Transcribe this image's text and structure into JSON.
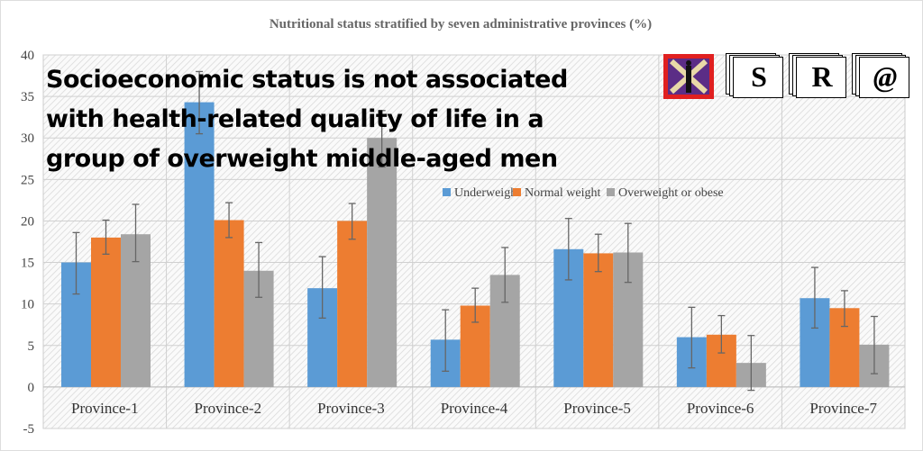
{
  "chart_data": {
    "type": "bar",
    "title": "Nutritional  status stratified  by seven administrative  provinces (%)",
    "categories": [
      "Province-1",
      "Province-2",
      "Province-3",
      "Province-4",
      "Province-5",
      "Province-6",
      "Province-7"
    ],
    "series": [
      {
        "name": "Underweight",
        "color": "#5b9bd5",
        "values": [
          15.0,
          34.3,
          11.9,
          5.7,
          16.6,
          6.0,
          10.7
        ],
        "err_low": [
          11.2,
          30.5,
          8.3,
          1.9,
          12.9,
          2.3,
          7.1
        ],
        "err_high": [
          18.6,
          38.0,
          15.7,
          9.3,
          20.3,
          9.6,
          14.4
        ]
      },
      {
        "name": "Normal weight",
        "color": "#ed7d31",
        "values": [
          18.0,
          20.1,
          20.0,
          9.8,
          16.1,
          6.3,
          9.5
        ],
        "err_low": [
          16.0,
          18.0,
          17.8,
          7.8,
          13.9,
          4.1,
          7.3
        ],
        "err_high": [
          20.1,
          22.2,
          22.1,
          11.9,
          18.4,
          8.6,
          11.6
        ]
      },
      {
        "name": "Overweight or obese",
        "color": "#a5a5a5",
        "values": [
          18.4,
          14.0,
          30.0,
          13.5,
          16.2,
          2.9,
          5.1
        ],
        "err_low": [
          15.1,
          10.8,
          26.5,
          10.2,
          12.6,
          -0.4,
          1.6
        ],
        "err_high": [
          22.0,
          17.4,
          33.3,
          16.8,
          19.7,
          6.2,
          8.5
        ]
      }
    ],
    "yticks": [
      "40",
      "35",
      "30",
      "25",
      "20",
      "15",
      "10",
      "5",
      "0",
      "-5"
    ],
    "ylim": [
      -5,
      40
    ],
    "grid": true,
    "legend": "center"
  },
  "banner": {
    "lines": [
      "Socioeconomic status is not associated",
      "with health-related quality of life in a",
      "group of overweight middle-aged men"
    ]
  },
  "logos": [
    "S",
    "R",
    "@"
  ]
}
